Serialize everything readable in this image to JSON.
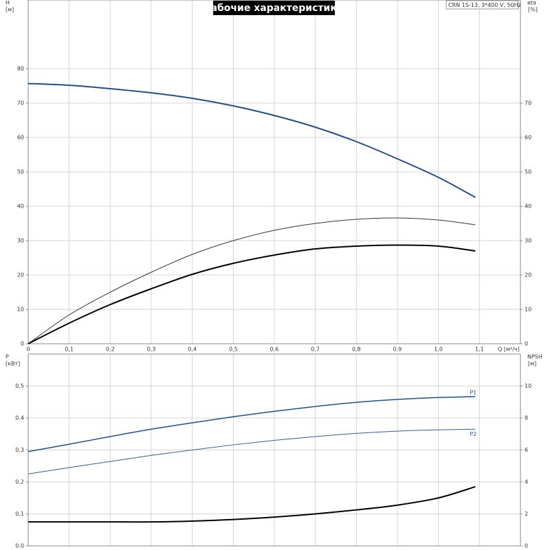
{
  "chart_data": [
    {
      "type": "line",
      "title": "Рабочие характеристики",
      "annotation": "CRN 1S-13, 3*400 V, 50Hz",
      "ylabel": "H",
      "yunit": "[м]",
      "y2label": "eta",
      "y2unit": "[%]",
      "xlabel": "Q [м³/ч]",
      "x": [
        0,
        0.1,
        0.2,
        0.3,
        0.4,
        0.5,
        0.6,
        0.7,
        0.8,
        0.9,
        1.0,
        1.09
      ],
      "xlim": [
        0,
        1.2
      ],
      "xticks": [
        0,
        {
          "value": 0.1,
          "label": "0,1"
        },
        {
          "value": 0.2,
          "label": "0,2"
        },
        {
          "value": 0.3,
          "label": "0,3"
        },
        {
          "value": 0.4,
          "label": "0,4"
        },
        {
          "value": 0.5,
          "label": "0,5"
        },
        {
          "value": 0.6,
          "label": "0,6"
        },
        {
          "value": 0.7,
          "label": "0,7"
        },
        {
          "value": 0.8,
          "label": "0,8"
        },
        {
          "value": 0.9,
          "label": "0,9"
        },
        {
          "value": 1.0,
          "label": "1,0"
        },
        {
          "value": 1.1,
          "label": "1,1"
        }
      ],
      "ylim": [
        0,
        100
      ],
      "yticks": [
        0,
        10,
        20,
        30,
        40,
        50,
        60,
        70,
        80
      ],
      "y2lim": [
        0,
        100
      ],
      "y2ticks": [
        0,
        10,
        20,
        30,
        40,
        50,
        60,
        70
      ],
      "grid": true,
      "series": [
        {
          "color": "#1f4e8c",
          "values": [
            75.7,
            75.2,
            74.2,
            73,
            71.4,
            69.2,
            66.4,
            63,
            58.8,
            53.8,
            48.4,
            42.6
          ]
        },
        {
          "color": "#333333",
          "axis": "y2",
          "values": [
            0,
            8.4,
            15,
            20.8,
            26,
            30,
            33,
            35,
            36.2,
            36.6,
            36,
            34.6
          ]
        },
        {
          "color": "#000000",
          "axis": "y2",
          "values": [
            0,
            6,
            11.4,
            16,
            20.2,
            23.4,
            25.8,
            27.6,
            28.4,
            28.7,
            28.4,
            27
          ]
        }
      ]
    },
    {
      "type": "line",
      "ylabel": "P",
      "yunit": "[кВт]",
      "y2label": "NPSH",
      "y2unit": "[м]",
      "x": [
        0,
        0.1,
        0.2,
        0.3,
        0.4,
        0.5,
        0.6,
        0.7,
        0.8,
        0.9,
        1.0,
        1.09
      ],
      "xlim": [
        0,
        1.2
      ],
      "ylim": [
        0,
        0.6
      ],
      "yticks": [
        {
          "value": 0,
          "label": "0.0"
        },
        0.1,
        0.2,
        0.3,
        0.4,
        0.5
      ],
      "y2lim": [
        0,
        12
      ],
      "y2ticks": [
        0,
        2,
        4,
        6,
        8,
        10
      ],
      "grid": true,
      "series": [
        {
          "name": "P1",
          "color": "#1f4e8c",
          "values": [
            0.295,
            0.318,
            0.342,
            0.365,
            0.385,
            0.404,
            0.421,
            0.436,
            0.449,
            0.458,
            0.464,
            0.467
          ]
        },
        {
          "name": "P2",
          "color": "#2a5f9e",
          "values": [
            0.225,
            0.245,
            0.264,
            0.283,
            0.3,
            0.316,
            0.33,
            0.342,
            0.352,
            0.359,
            0.363,
            0.365
          ]
        },
        {
          "color": "#000000",
          "axis": "y2",
          "values": [
            1.5,
            1.5,
            1.5,
            1.5,
            1.55,
            1.65,
            1.8,
            2.0,
            2.25,
            2.55,
            3.0,
            3.7
          ]
        }
      ]
    }
  ]
}
